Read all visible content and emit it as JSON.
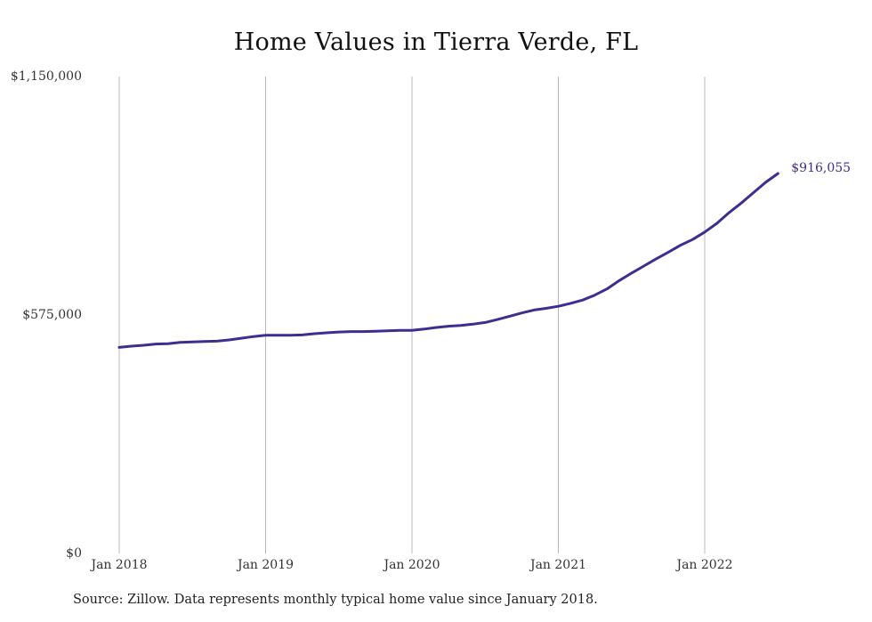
{
  "chart_data": {
    "type": "line",
    "title": "Home Values in Tierra Verde, FL",
    "xlabel": "",
    "ylabel": "",
    "ylim": [
      0,
      1150000
    ],
    "y_ticks": [
      {
        "value": 0,
        "label": "$0"
      },
      {
        "value": 575000,
        "label": "$575,000"
      },
      {
        "value": 1150000,
        "label": "$1,150,000"
      }
    ],
    "x_ticks": [
      {
        "date": "2018-01",
        "label": "Jan 2018"
      },
      {
        "date": "2019-01",
        "label": "Jan 2019"
      },
      {
        "date": "2020-01",
        "label": "Jan 2020"
      },
      {
        "date": "2021-01",
        "label": "Jan 2021"
      },
      {
        "date": "2022-01",
        "label": "Jan 2022"
      }
    ],
    "grid": "vertical",
    "line_color": "#3b2f8f",
    "end_label": "$916,055",
    "series": [
      {
        "x": [
          "2018-01",
          "2018-02",
          "2018-03",
          "2018-04",
          "2018-05",
          "2018-06",
          "2018-07",
          "2018-08",
          "2018-09",
          "2018-10",
          "2018-11",
          "2018-12",
          "2019-01",
          "2019-02",
          "2019-03",
          "2019-04",
          "2019-05",
          "2019-06",
          "2019-07",
          "2019-08",
          "2019-09",
          "2019-10",
          "2019-11",
          "2019-12",
          "2020-01",
          "2020-02",
          "2020-03",
          "2020-04",
          "2020-05",
          "2020-06",
          "2020-07",
          "2020-08",
          "2020-09",
          "2020-10",
          "2020-11",
          "2020-12",
          "2021-01",
          "2021-02",
          "2021-03",
          "2021-04",
          "2021-05",
          "2021-06",
          "2021-07",
          "2021-08",
          "2021-09",
          "2021-10",
          "2021-11",
          "2021-12",
          "2022-01",
          "2022-02",
          "2022-03",
          "2022-04",
          "2022-05",
          "2022-06",
          "2022-07"
        ],
        "values": [
          497000,
          500000,
          502000,
          505000,
          506000,
          509000,
          510000,
          511000,
          512000,
          515000,
          519000,
          523000,
          526000,
          526000,
          526000,
          527000,
          530000,
          532000,
          534000,
          535000,
          535000,
          536000,
          537000,
          538000,
          538000,
          541000,
          545000,
          548000,
          550000,
          553000,
          557000,
          564000,
          572000,
          580000,
          587000,
          591000,
          596000,
          603000,
          611000,
          623000,
          638000,
          658000,
          676000,
          693000,
          710000,
          726000,
          743000,
          757000,
          775000,
          796000,
          822000,
          845000,
          870000,
          895000,
          916055
        ]
      }
    ]
  },
  "footer": {
    "source": "Source: Zillow. Data represents monthly typical home value since January 2018."
  }
}
